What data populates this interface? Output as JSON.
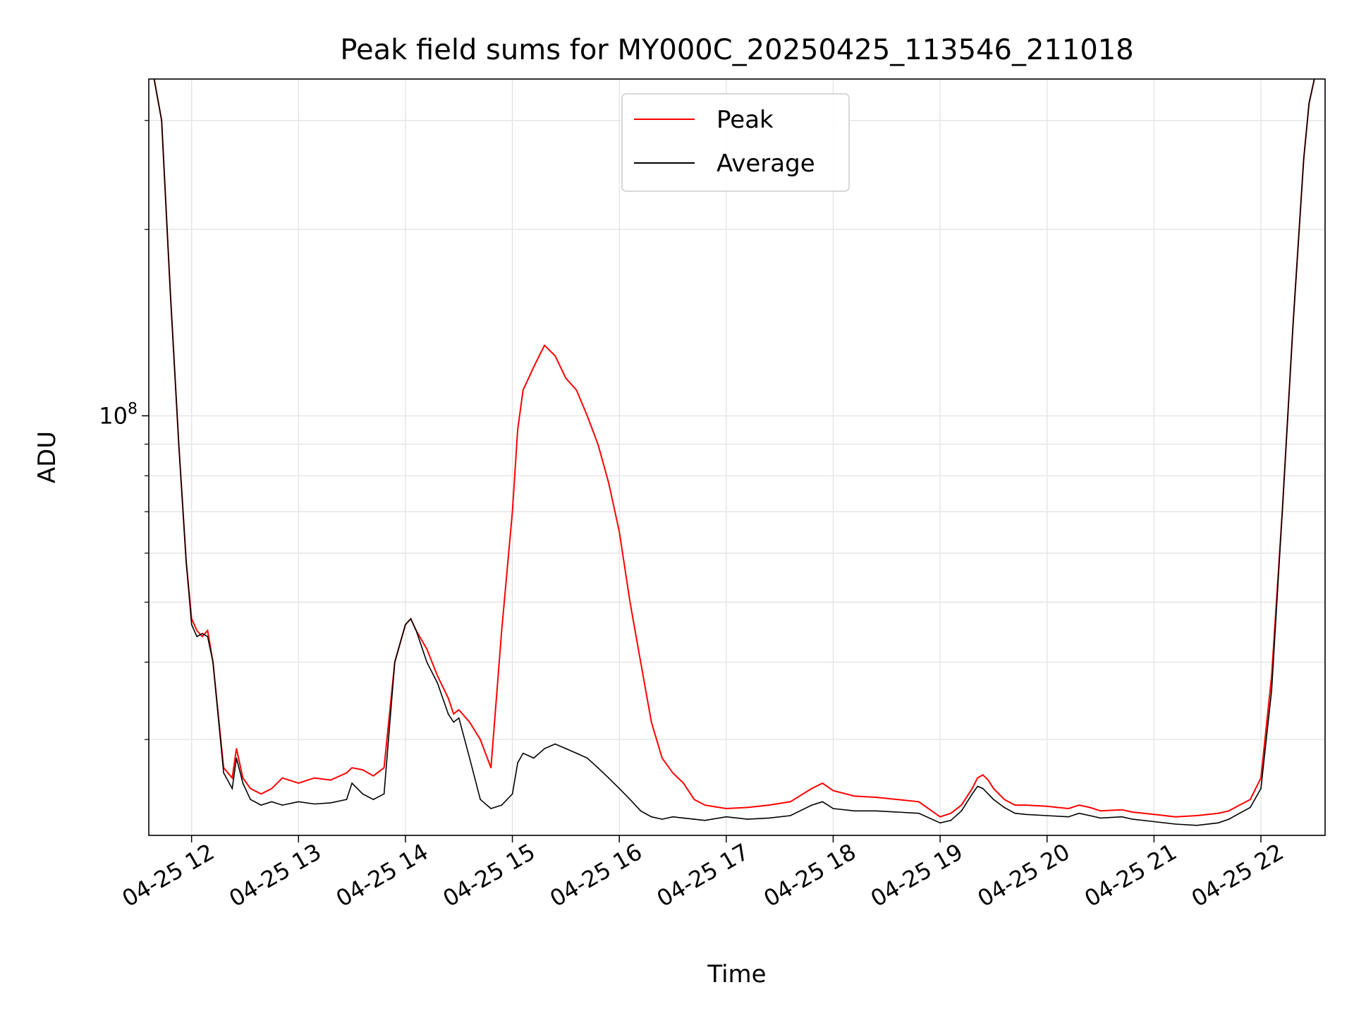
{
  "chart_data": {
    "type": "line",
    "title": "Peak field sums for MY000C_20250425_113546_211018",
    "xlabel": "Time",
    "ylabel": "ADU",
    "y_scale": "log",
    "grid": true,
    "legend_location": "upper center",
    "x_tick_labels": [
      "04-25 12",
      "04-25 13",
      "04-25 14",
      "04-25 15",
      "04-25 16",
      "04-25 17",
      "04-25 18",
      "04-25 19",
      "04-25 20",
      "04-25 21",
      "04-25 22"
    ],
    "x_tick_hours": [
      12,
      13,
      14,
      15,
      16,
      17,
      18,
      19,
      20,
      21,
      22
    ],
    "xlim_hours": [
      11.6,
      22.6
    ],
    "ylim": [
      21000000,
      350000000
    ],
    "y_major_tick_labels": [
      {
        "value": 100000000,
        "base": "10",
        "exp": "8"
      }
    ],
    "y_minor_ticks": [
      30000000,
      40000000,
      50000000,
      60000000,
      70000000,
      80000000,
      90000000,
      200000000,
      300000000
    ],
    "series": [
      {
        "name": "Peak",
        "color": "#ff0000",
        "x_hours": [
          11.65,
          11.72,
          11.8,
          11.88,
          11.95,
          12.0,
          12.05,
          12.1,
          12.15,
          12.2,
          12.3,
          12.38,
          12.42,
          12.48,
          12.55,
          12.65,
          12.75,
          12.85,
          13.0,
          13.15,
          13.3,
          13.45,
          13.5,
          13.6,
          13.7,
          13.8,
          13.9,
          14.0,
          14.05,
          14.1,
          14.2,
          14.3,
          14.4,
          14.45,
          14.5,
          14.6,
          14.7,
          14.8,
          14.9,
          15.0,
          15.05,
          15.1,
          15.2,
          15.3,
          15.4,
          15.5,
          15.6,
          15.7,
          15.8,
          15.9,
          16.0,
          16.1,
          16.2,
          16.3,
          16.4,
          16.5,
          16.6,
          16.7,
          16.8,
          17.0,
          17.2,
          17.4,
          17.6,
          17.8,
          17.9,
          18.0,
          18.2,
          18.4,
          18.6,
          18.8,
          19.0,
          19.1,
          19.2,
          19.3,
          19.35,
          19.4,
          19.45,
          19.5,
          19.6,
          19.7,
          19.8,
          20.0,
          20.2,
          20.3,
          20.4,
          20.5,
          20.7,
          20.8,
          21.0,
          21.2,
          21.4,
          21.6,
          21.7,
          21.8,
          21.9,
          22.0,
          22.1,
          22.2,
          22.3,
          22.4,
          22.45,
          22.5
        ],
        "y": [
          350000000,
          300000000,
          160000000,
          90000000,
          58000000,
          47000000,
          45000000,
          44000000,
          45000000,
          40000000,
          27000000,
          26000000,
          29000000,
          26000000,
          25000000,
          24500000,
          25000000,
          26000000,
          25500000,
          26000000,
          25800000,
          26500000,
          27000000,
          26800000,
          26200000,
          27000000,
          40000000,
          46000000,
          47000000,
          45000000,
          42000000,
          38000000,
          35000000,
          33000000,
          33500000,
          32000000,
          30000000,
          27000000,
          45000000,
          70000000,
          95000000,
          110000000,
          120000000,
          130000000,
          125000000,
          115000000,
          110000000,
          100000000,
          90000000,
          78000000,
          65000000,
          50000000,
          40000000,
          32000000,
          28000000,
          26500000,
          25500000,
          24000000,
          23500000,
          23200000,
          23300000,
          23500000,
          23800000,
          25000000,
          25500000,
          24800000,
          24300000,
          24200000,
          24000000,
          23800000,
          22500000,
          22800000,
          23500000,
          25000000,
          26000000,
          26300000,
          25800000,
          25000000,
          24000000,
          23500000,
          23500000,
          23400000,
          23200000,
          23500000,
          23300000,
          23000000,
          23100000,
          22900000,
          22700000,
          22500000,
          22600000,
          22800000,
          23000000,
          23500000,
          24000000,
          26000000,
          38000000,
          70000000,
          140000000,
          260000000,
          320000000,
          350000000
        ]
      },
      {
        "name": "Average",
        "color": "#000000",
        "x_hours": [
          11.65,
          11.72,
          11.8,
          11.88,
          11.95,
          12.0,
          12.05,
          12.1,
          12.15,
          12.2,
          12.3,
          12.38,
          12.42,
          12.48,
          12.55,
          12.65,
          12.75,
          12.85,
          13.0,
          13.15,
          13.3,
          13.45,
          13.5,
          13.6,
          13.7,
          13.8,
          13.9,
          14.0,
          14.05,
          14.1,
          14.2,
          14.3,
          14.4,
          14.45,
          14.5,
          14.6,
          14.7,
          14.8,
          14.9,
          15.0,
          15.05,
          15.1,
          15.2,
          15.3,
          15.4,
          15.5,
          15.6,
          15.7,
          15.8,
          15.9,
          16.0,
          16.1,
          16.2,
          16.3,
          16.4,
          16.5,
          16.6,
          16.7,
          16.8,
          17.0,
          17.2,
          17.4,
          17.6,
          17.8,
          17.9,
          18.0,
          18.2,
          18.4,
          18.6,
          18.8,
          19.0,
          19.1,
          19.2,
          19.3,
          19.35,
          19.4,
          19.45,
          19.5,
          19.6,
          19.7,
          19.8,
          20.0,
          20.2,
          20.3,
          20.4,
          20.5,
          20.7,
          20.8,
          21.0,
          21.2,
          21.4,
          21.6,
          21.7,
          21.8,
          21.9,
          22.0,
          22.1,
          22.2,
          22.3,
          22.4,
          22.45,
          22.5
        ],
        "y": [
          350000000,
          300000000,
          160000000,
          90000000,
          58000000,
          46000000,
          44000000,
          44500000,
          44000000,
          40000000,
          26500000,
          25000000,
          28000000,
          25500000,
          24000000,
          23500000,
          23800000,
          23500000,
          23800000,
          23600000,
          23700000,
          24000000,
          25500000,
          24500000,
          24000000,
          24500000,
          40000000,
          46000000,
          47000000,
          45000000,
          40000000,
          37000000,
          33000000,
          32000000,
          32500000,
          28000000,
          24000000,
          23200000,
          23500000,
          24500000,
          27500000,
          28500000,
          28000000,
          29000000,
          29500000,
          29000000,
          28500000,
          28000000,
          27000000,
          26000000,
          25000000,
          24000000,
          23000000,
          22500000,
          22300000,
          22500000,
          22400000,
          22300000,
          22200000,
          22500000,
          22300000,
          22400000,
          22600000,
          23500000,
          23800000,
          23200000,
          23000000,
          23000000,
          22900000,
          22800000,
          22000000,
          22200000,
          23000000,
          24500000,
          25200000,
          25000000,
          24500000,
          24000000,
          23300000,
          22800000,
          22700000,
          22600000,
          22500000,
          22800000,
          22600000,
          22400000,
          22500000,
          22300000,
          22100000,
          21900000,
          21800000,
          22000000,
          22300000,
          22800000,
          23300000,
          25000000,
          36000000,
          70000000,
          140000000,
          260000000,
          320000000,
          350000000
        ]
      }
    ]
  }
}
